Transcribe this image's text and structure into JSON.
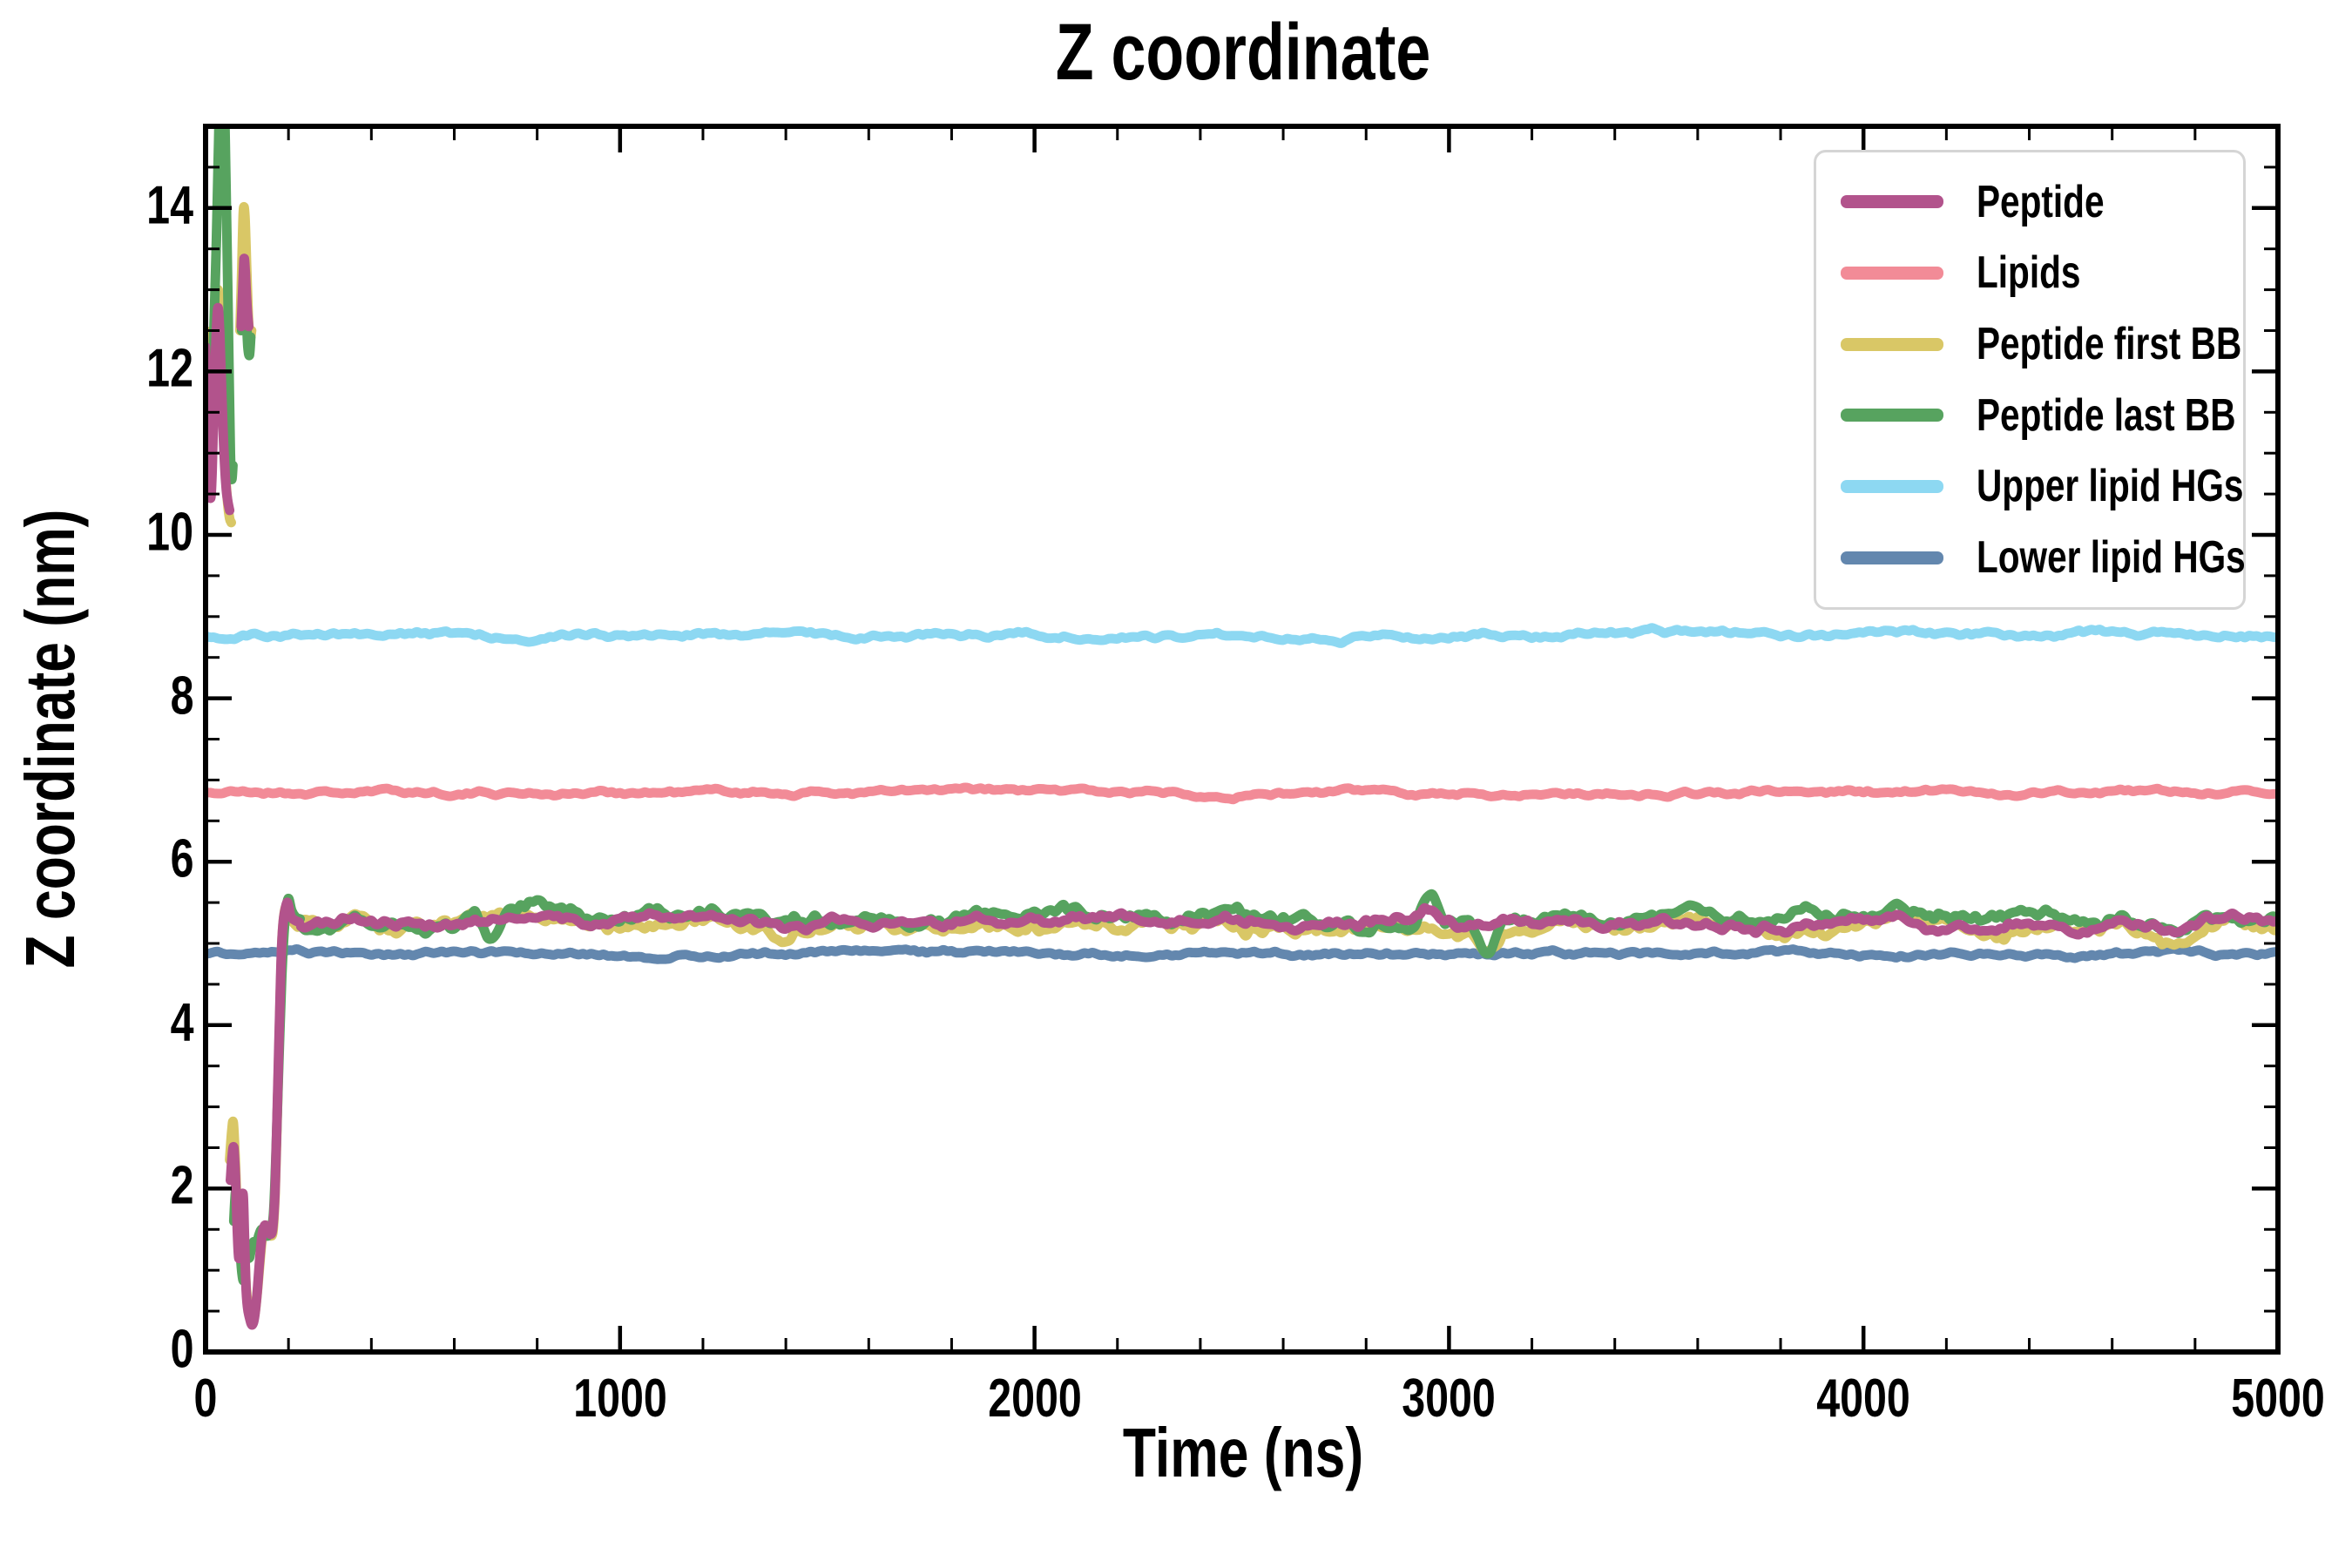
{
  "chart_data": {
    "type": "line",
    "title": "Z coordinate",
    "xlabel": "Time (ns)",
    "ylabel": "Z coordinate (nm)",
    "xlim": [
      0,
      5000
    ],
    "ylim": [
      0,
      15
    ],
    "x_major_ticks": [
      0,
      1000,
      2000,
      3000,
      4000,
      5000
    ],
    "x_minor_step": 200,
    "y_major_ticks": [
      0,
      2,
      4,
      6,
      8,
      10,
      12,
      14
    ],
    "y_minor_step": 0.5,
    "grid": false,
    "legend_position": "upper right",
    "legend_border_color": "#d5d5d5",
    "axis_color": "#000000",
    "common_noise_seed": 7,
    "draw_order": [
      "Lipids",
      "Upper lipid HGs",
      "Lower lipid HGs",
      "Peptide first BB",
      "Peptide last BB",
      "Peptide"
    ],
    "series": [
      {
        "name": "Peptide",
        "color": "#b2538c",
        "line_width": 11,
        "transient_segments": [
          [
            [
              0,
              12.3
            ],
            [
              4,
              11.6
            ],
            [
              8,
              10.9
            ],
            [
              12,
              10.45
            ],
            [
              16,
              10.8
            ],
            [
              21,
              11.8
            ],
            [
              26,
              12.5
            ],
            [
              30,
              12.78
            ],
            [
              34,
              12.5
            ],
            [
              38,
              11.9
            ],
            [
              42,
              11.3
            ],
            [
              46,
              10.85
            ],
            [
              50,
              10.55
            ],
            [
              54,
              10.4
            ],
            [
              58,
              10.3
            ]
          ],
          [
            [
              86,
              12.55
            ],
            [
              90,
              13.05
            ],
            [
              93,
              13.38
            ],
            [
              96,
              13.2
            ],
            [
              100,
              12.8
            ],
            [
              104,
              12.55
            ]
          ],
          [
            [
              60,
              2.1
            ],
            [
              64,
              2.4
            ],
            [
              68,
              2.5
            ],
            [
              72,
              2.15
            ],
            [
              76,
              1.55
            ],
            [
              80,
              1.15
            ],
            [
              84,
              1.35
            ],
            [
              88,
              1.85
            ],
            [
              91,
              1.9
            ],
            [
              94,
              1.4
            ],
            [
              97,
              0.85
            ],
            [
              101,
              0.55
            ],
            [
              106,
              0.42
            ],
            [
              112,
              0.33
            ],
            [
              118,
              0.42
            ],
            [
              124,
              0.7
            ],
            [
              130,
              1.1
            ],
            [
              136,
              1.42
            ],
            [
              143,
              1.55
            ],
            [
              150,
              1.5
            ],
            [
              157,
              1.44
            ],
            [
              162,
              1.52
            ],
            [
              167,
              1.9
            ],
            [
              171,
              2.6
            ],
            [
              175,
              3.4
            ],
            [
              179,
              4.2
            ],
            [
              183,
              4.9
            ],
            [
              187,
              5.25
            ],
            [
              192,
              5.42
            ],
            [
              198,
              5.5
            ],
            [
              206,
              5.33
            ],
            [
              216,
              5.28
            ],
            [
              226,
              5.26
            ]
          ]
        ],
        "plateau": {
          "from": 226,
          "to": 5000,
          "mean": 5.26,
          "amp": 0.08,
          "seed": 11,
          "bumps": [
            {
              "t": 2950,
              "dv": 0.18,
              "w": 30
            },
            {
              "t": 4180,
              "dv": -0.15,
              "w": 40
            }
          ]
        }
      },
      {
        "name": "Lipids",
        "color": "#f28b97",
        "line_width": 11,
        "flat": {
          "mean": 6.85,
          "amp": 0.04,
          "seed": 21
        }
      },
      {
        "name": "Peptide first BB",
        "color": "#d9c766",
        "line_width": 11,
        "transient_segments": [
          [
            [
              0,
              12.5
            ],
            [
              4,
              11.8
            ],
            [
              8,
              11.1
            ],
            [
              12,
              10.55
            ],
            [
              16,
              10.9
            ],
            [
              21,
              11.9
            ],
            [
              26,
              12.7
            ],
            [
              30,
              13.0
            ],
            [
              34,
              12.75
            ],
            [
              38,
              12.15
            ],
            [
              42,
              11.5
            ],
            [
              46,
              11.0
            ],
            [
              50,
              10.6
            ],
            [
              54,
              10.35
            ],
            [
              58,
              10.2
            ],
            [
              62,
              10.15
            ]
          ],
          [
            [
              83,
              12.5
            ],
            [
              87,
              13.2
            ],
            [
              91,
              13.95
            ],
            [
              95,
              13.9
            ],
            [
              99,
              13.3
            ],
            [
              103,
              12.7
            ],
            [
              107,
              12.4
            ],
            [
              111,
              12.5
            ]
          ],
          [
            [
              58,
              2.35
            ],
            [
              63,
              2.7
            ],
            [
              67,
              2.8
            ],
            [
              72,
              2.3
            ],
            [
              77,
              1.6
            ],
            [
              82,
              1.25
            ],
            [
              86,
              1.5
            ],
            [
              90,
              1.8
            ],
            [
              94,
              1.3
            ],
            [
              98,
              0.8
            ],
            [
              103,
              0.55
            ],
            [
              108,
              0.42
            ],
            [
              114,
              0.38
            ],
            [
              120,
              0.5
            ],
            [
              126,
              0.8
            ],
            [
              132,
              1.15
            ],
            [
              138,
              1.45
            ],
            [
              145,
              1.55
            ],
            [
              152,
              1.48
            ],
            [
              158,
              1.42
            ],
            [
              163,
              1.5
            ],
            [
              168,
              1.95
            ],
            [
              172,
              2.7
            ],
            [
              176,
              3.5
            ],
            [
              180,
              4.3
            ],
            [
              184,
              5.0
            ],
            [
              188,
              5.3
            ],
            [
              194,
              5.45
            ],
            [
              202,
              5.32
            ],
            [
              212,
              5.25
            ],
            [
              222,
              5.2
            ]
          ]
        ],
        "plateau": {
          "from": 222,
          "to": 5000,
          "mean": 5.21,
          "amp": 0.11,
          "seed": 31,
          "bumps": [
            {
              "t": 3090,
              "dv": -0.2,
              "w": 35
            },
            {
              "t": 4750,
              "dv": -0.15,
              "w": 60
            }
          ]
        }
      },
      {
        "name": "Peptide last BB",
        "color": "#57a35f",
        "line_width": 11,
        "transient_segments": [
          [
            [
              0,
              12.05
            ],
            [
              5,
              11.4
            ],
            [
              10,
              11.15
            ],
            [
              15,
              11.7
            ],
            [
              20,
              12.5
            ],
            [
              26,
              13.6
            ],
            [
              31,
              14.7
            ],
            [
              35,
              15.5
            ],
            [
              44,
              15.5
            ],
            [
              49,
              14.4
            ],
            [
              53,
              13.2
            ],
            [
              57,
              11.9
            ],
            [
              60,
              11.0
            ],
            [
              63,
              10.68
            ],
            [
              66,
              10.85
            ]
          ],
          [
            [
              87,
              12.5
            ],
            [
              91,
              12.95
            ],
            [
              94,
              13.1
            ],
            [
              98,
              12.7
            ],
            [
              102,
              12.3
            ],
            [
              106,
              12.2
            ],
            [
              109,
              12.42
            ]
          ],
          [
            [
              68,
              1.6
            ],
            [
              72,
              1.95
            ],
            [
              76,
              1.9
            ],
            [
              80,
              1.55
            ],
            [
              84,
              1.2
            ],
            [
              88,
              0.95
            ],
            [
              92,
              0.88
            ],
            [
              96,
              1.1
            ],
            [
              100,
              1.3
            ],
            [
              105,
              1.15
            ],
            [
              110,
              1.25
            ],
            [
              116,
              1.35
            ],
            [
              122,
              1.3
            ],
            [
              128,
              1.42
            ],
            [
              135,
              1.5
            ],
            [
              142,
              1.45
            ],
            [
              150,
              1.42
            ],
            [
              158,
              1.5
            ],
            [
              164,
              1.7
            ],
            [
              169,
              2.3
            ],
            [
              174,
              3.1
            ],
            [
              179,
              3.9
            ],
            [
              184,
              4.6
            ],
            [
              189,
              5.1
            ],
            [
              194,
              5.4
            ],
            [
              200,
              5.55
            ],
            [
              208,
              5.4
            ],
            [
              218,
              5.32
            ],
            [
              228,
              5.3
            ]
          ]
        ],
        "plateau": {
          "from": 228,
          "to": 5000,
          "mean": 5.29,
          "amp": 0.12,
          "seed": 41,
          "bumps": [
            {
              "t": 690,
              "dv": -0.32,
              "w": 25
            },
            {
              "t": 800,
              "dv": 0.2,
              "w": 28
            },
            {
              "t": 2950,
              "dv": 0.38,
              "w": 26
            },
            {
              "t": 3090,
              "dv": -0.4,
              "w": 30
            }
          ]
        }
      },
      {
        "name": "Upper lipid HGs",
        "color": "#8dd8f2",
        "line_width": 11,
        "flat": {
          "mean": 8.78,
          "amp": 0.045,
          "seed": 51
        }
      },
      {
        "name": "Lower lipid HGs",
        "color": "#6387ae",
        "line_width": 11,
        "flat": {
          "mean": 4.87,
          "amp": 0.04,
          "seed": 61
        }
      }
    ]
  }
}
